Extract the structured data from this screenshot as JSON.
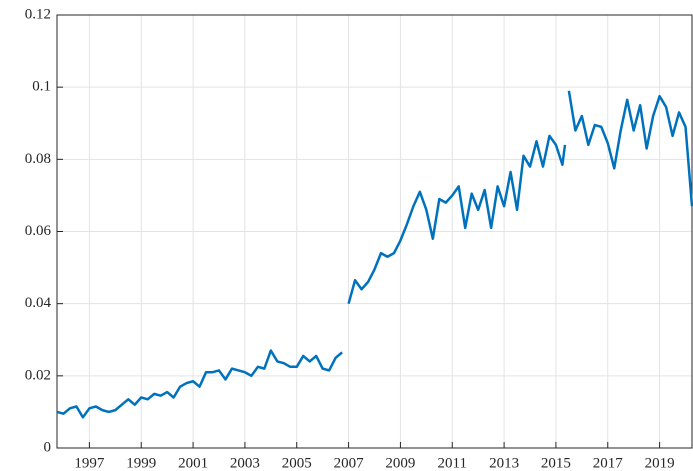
{
  "chart_data": {
    "type": "line",
    "x": [
      1995.75,
      1996,
      1996.25,
      1996.5,
      1996.75,
      1997,
      1997.25,
      1997.5,
      1997.75,
      1998,
      1998.25,
      1998.5,
      1998.75,
      1999,
      1999.25,
      1999.5,
      1999.75,
      2000,
      2000.25,
      2000.5,
      2000.75,
      2001,
      2001.25,
      2001.5,
      2001.75,
      2002,
      2002.25,
      2002.5,
      2002.75,
      2003,
      2003.25,
      2003.5,
      2003.75,
      2004,
      2004.25,
      2004.5,
      2004.75,
      2005,
      2005.25,
      2005.5,
      2005.75,
      2006,
      2006.25,
      2006.5,
      2006.75,
      2006.875,
      2007,
      2007.25,
      2007.5,
      2007.75,
      2008,
      2008.25,
      2008.5,
      2008.75,
      2009,
      2009.25,
      2009.5,
      2009.75,
      2010,
      2010.25,
      2010.5,
      2010.75,
      2011,
      2011.25,
      2011.5,
      2011.75,
      2012,
      2012.25,
      2012.5,
      2012.75,
      2013,
      2013.25,
      2013.5,
      2013.75,
      2014,
      2014.25,
      2014.5,
      2014.75,
      2015,
      2015.25,
      2015.35,
      2015.45,
      2015.5,
      2015.75,
      2016,
      2016.25,
      2016.5,
      2016.75,
      2017,
      2017.25,
      2017.5,
      2017.75,
      2018,
      2018.25,
      2018.5,
      2018.75,
      2019,
      2019.25,
      2019.5,
      2019.75,
      2020,
      2020.25
    ],
    "series": [
      {
        "color": "#0072bd",
        "values": [
          0.01,
          0.0095,
          0.011,
          0.0115,
          0.0085,
          0.011,
          0.0115,
          0.0105,
          0.01,
          0.0105,
          0.012,
          0.0135,
          0.012,
          0.014,
          0.0135,
          0.015,
          0.0145,
          0.0155,
          0.014,
          0.017,
          0.018,
          0.0185,
          0.017,
          0.021,
          0.021,
          0.0215,
          0.019,
          0.022,
          0.0215,
          0.021,
          0.02,
          0.0225,
          0.022,
          0.027,
          0.024,
          0.0235,
          0.0225,
          0.0225,
          0.0255,
          0.024,
          0.0255,
          0.022,
          0.0215,
          0.025,
          0.0265,
          null,
          0.04,
          0.0465,
          0.044,
          0.046,
          0.0495,
          0.054,
          0.053,
          0.054,
          0.0575,
          0.062,
          0.067,
          0.071,
          0.066,
          0.058,
          0.069,
          0.068,
          0.07,
          0.0725,
          0.061,
          0.0705,
          0.066,
          0.0715,
          0.061,
          0.0725,
          0.067,
          0.0765,
          0.066,
          0.081,
          0.078,
          0.085,
          0.078,
          0.0865,
          0.084,
          0.0785,
          0.084,
          null,
          0.099,
          0.088,
          0.092,
          0.084,
          0.0895,
          0.089,
          0.0845,
          0.0775,
          0.088,
          0.0965,
          0.088,
          0.095,
          0.083,
          0.092,
          0.0975,
          0.0945,
          0.0865,
          0.093,
          0.089,
          0.067
        ]
      }
    ],
    "xlim": [
      1995.75,
      2020.25
    ],
    "xticks": [
      1997,
      1999,
      2001,
      2003,
      2005,
      2007,
      2009,
      2011,
      2013,
      2015,
      2017,
      2019
    ],
    "ylim": [
      0,
      0.12
    ],
    "yticks": [
      0,
      0.02,
      0.04,
      0.06,
      0.08,
      0.1,
      0.12
    ],
    "grid": true
  }
}
